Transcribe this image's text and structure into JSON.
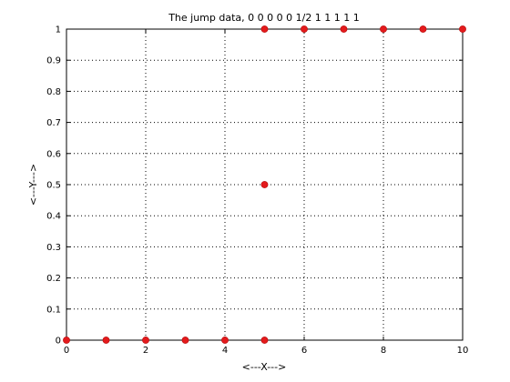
{
  "chart_data": {
    "type": "scatter",
    "title": "The jump data, 0 0 0 0 0 1/2 1 1 1 1 1",
    "xlabel": "<---X--->",
    "ylabel": "<---Y--->",
    "xlim": [
      0,
      10
    ],
    "ylim": [
      0,
      1
    ],
    "xticks": [
      0,
      2,
      4,
      6,
      8,
      10
    ],
    "yticks": [
      0,
      0.1,
      0.2,
      0.3,
      0.4,
      0.5,
      0.6,
      0.7,
      0.8,
      0.9,
      1
    ],
    "xtick_labels": [
      "0",
      "2",
      "4",
      "6",
      "8",
      "10"
    ],
    "ytick_labels": [
      "0",
      "0.1",
      "0.2",
      "0.3",
      "0.4",
      "0.5",
      "0.6",
      "0.7",
      "0.8",
      "0.9",
      "1"
    ],
    "grid": true,
    "marker_color": "#e41a1c",
    "points": [
      {
        "x": 0,
        "y": 0
      },
      {
        "x": 1,
        "y": 0
      },
      {
        "x": 2,
        "y": 0
      },
      {
        "x": 3,
        "y": 0
      },
      {
        "x": 4,
        "y": 0
      },
      {
        "x": 5,
        "y": 0
      },
      {
        "x": 5,
        "y": 0.5
      },
      {
        "x": 5,
        "y": 1
      },
      {
        "x": 6,
        "y": 1
      },
      {
        "x": 7,
        "y": 1
      },
      {
        "x": 8,
        "y": 1
      },
      {
        "x": 9,
        "y": 1
      },
      {
        "x": 10,
        "y": 1
      }
    ]
  }
}
